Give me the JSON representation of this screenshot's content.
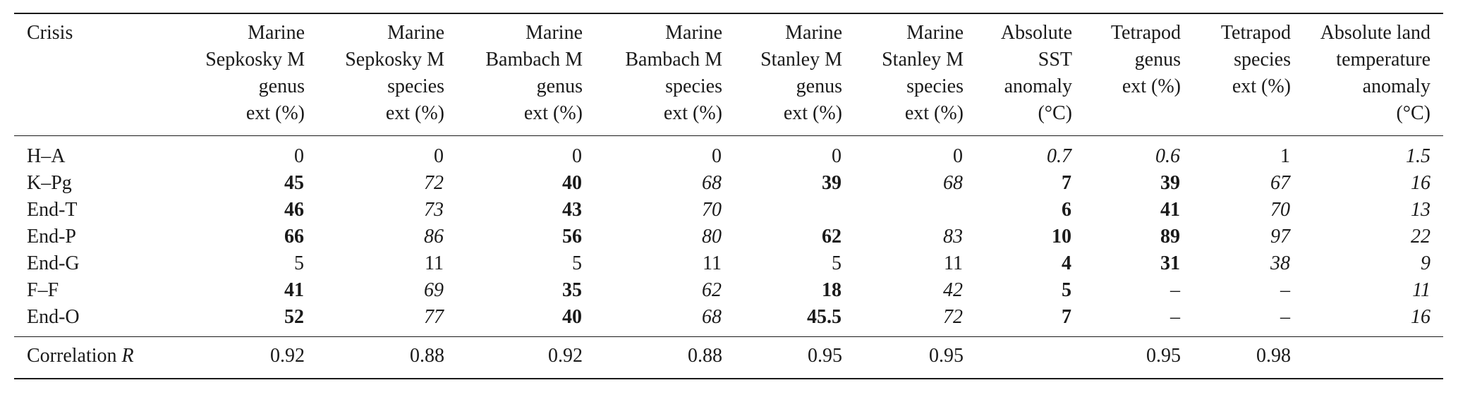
{
  "table": {
    "header": {
      "crisis": "Crisis",
      "columns": [
        [
          "Marine",
          "Sepkosky M",
          "genus",
          "ext (%)"
        ],
        [
          "Marine",
          "Sepkosky M",
          "species",
          "ext (%)"
        ],
        [
          "Marine",
          "Bambach M",
          "genus",
          "ext (%)"
        ],
        [
          "Marine",
          "Bambach M",
          "species",
          "ext (%)"
        ],
        [
          "Marine",
          "Stanley M",
          "genus",
          "ext (%)"
        ],
        [
          "Marine",
          "Stanley M",
          "species",
          "ext (%)"
        ],
        [
          "Absolute",
          "SST",
          "anomaly",
          "(°C)"
        ],
        [
          "Tetrapod",
          "genus",
          "ext (%)"
        ],
        [
          "Tetrapod",
          "species",
          "ext (%)"
        ],
        [
          "Absolute land",
          "temperature",
          "anomaly",
          "(°C)"
        ]
      ]
    },
    "rows": [
      {
        "crisis": "H–A",
        "cells": [
          {
            "v": "0",
            "s": ""
          },
          {
            "v": "0",
            "s": ""
          },
          {
            "v": "0",
            "s": ""
          },
          {
            "v": "0",
            "s": ""
          },
          {
            "v": "0",
            "s": ""
          },
          {
            "v": "0",
            "s": ""
          },
          {
            "v": "0.7",
            "s": "i"
          },
          {
            "v": "0.6",
            "s": "i"
          },
          {
            "v": "1",
            "s": ""
          },
          {
            "v": "1.5",
            "s": "i"
          }
        ]
      },
      {
        "crisis": "K–Pg",
        "cells": [
          {
            "v": "45",
            "s": "b"
          },
          {
            "v": "72",
            "s": "i"
          },
          {
            "v": "40",
            "s": "b"
          },
          {
            "v": "68",
            "s": "i"
          },
          {
            "v": "39",
            "s": "b"
          },
          {
            "v": "68",
            "s": "i"
          },
          {
            "v": "7",
            "s": "b"
          },
          {
            "v": "39",
            "s": "b"
          },
          {
            "v": "67",
            "s": "i"
          },
          {
            "v": "16",
            "s": "i"
          }
        ]
      },
      {
        "crisis": "End-T",
        "cells": [
          {
            "v": "46",
            "s": "b"
          },
          {
            "v": "73",
            "s": "i"
          },
          {
            "v": "43",
            "s": "b"
          },
          {
            "v": "70",
            "s": "i"
          },
          {
            "v": "",
            "s": ""
          },
          {
            "v": "",
            "s": ""
          },
          {
            "v": "6",
            "s": "b"
          },
          {
            "v": "41",
            "s": "b"
          },
          {
            "v": "70",
            "s": "i"
          },
          {
            "v": "13",
            "s": "i"
          }
        ]
      },
      {
        "crisis": "End-P",
        "cells": [
          {
            "v": "66",
            "s": "b"
          },
          {
            "v": "86",
            "s": "i"
          },
          {
            "v": "56",
            "s": "b"
          },
          {
            "v": "80",
            "s": "i"
          },
          {
            "v": "62",
            "s": "b"
          },
          {
            "v": "83",
            "s": "i"
          },
          {
            "v": "10",
            "s": "b"
          },
          {
            "v": "89",
            "s": "b"
          },
          {
            "v": "97",
            "s": "i"
          },
          {
            "v": "22",
            "s": "i"
          }
        ]
      },
      {
        "crisis": "End-G",
        "cells": [
          {
            "v": "5",
            "s": ""
          },
          {
            "v": "11",
            "s": ""
          },
          {
            "v": "5",
            "s": ""
          },
          {
            "v": "11",
            "s": ""
          },
          {
            "v": "5",
            "s": ""
          },
          {
            "v": "11",
            "s": ""
          },
          {
            "v": "4",
            "s": "b"
          },
          {
            "v": "31",
            "s": "b"
          },
          {
            "v": "38",
            "s": "i"
          },
          {
            "v": "9",
            "s": "i"
          }
        ]
      },
      {
        "crisis": "F–F",
        "cells": [
          {
            "v": "41",
            "s": "b"
          },
          {
            "v": "69",
            "s": "i"
          },
          {
            "v": "35",
            "s": "b"
          },
          {
            "v": "62",
            "s": "i"
          },
          {
            "v": "18",
            "s": "b"
          },
          {
            "v": "42",
            "s": "i"
          },
          {
            "v": "5",
            "s": "b"
          },
          {
            "v": "–",
            "s": ""
          },
          {
            "v": "–",
            "s": ""
          },
          {
            "v": "11",
            "s": "i"
          }
        ]
      },
      {
        "crisis": "End-O",
        "cells": [
          {
            "v": "52",
            "s": "b"
          },
          {
            "v": "77",
            "s": "i"
          },
          {
            "v": "40",
            "s": "b"
          },
          {
            "v": "68",
            "s": "i"
          },
          {
            "v": "45.5",
            "s": "b"
          },
          {
            "v": "72",
            "s": "i"
          },
          {
            "v": "7",
            "s": "b"
          },
          {
            "v": "–",
            "s": ""
          },
          {
            "v": "–",
            "s": ""
          },
          {
            "v": "16",
            "s": "i"
          }
        ]
      }
    ],
    "footer": {
      "label_prefix": "Correlation ",
      "label_var": "R",
      "cells": [
        "0.92",
        "0.88",
        "0.92",
        "0.88",
        "0.95",
        "0.95",
        "",
        "0.95",
        "0.98",
        ""
      ]
    }
  }
}
